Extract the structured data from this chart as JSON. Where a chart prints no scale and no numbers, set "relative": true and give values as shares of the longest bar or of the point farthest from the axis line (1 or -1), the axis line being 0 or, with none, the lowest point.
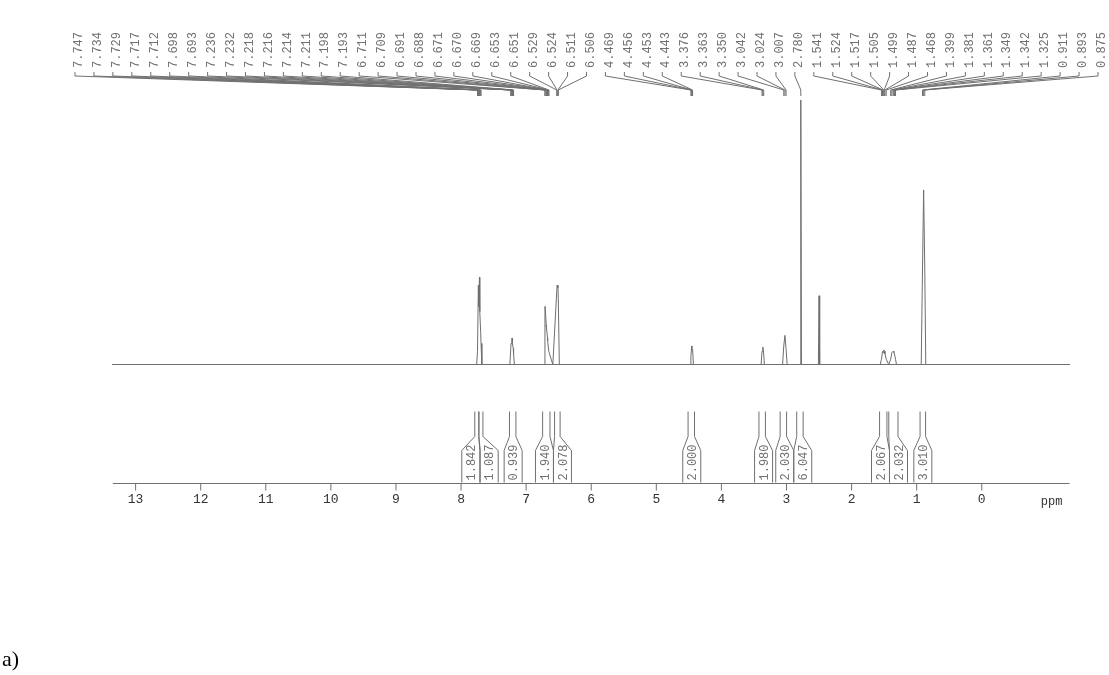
{
  "chart_data": {
    "type": "line",
    "relative": true,
    "xlabel": "ppm",
    "xlim": [
      13.35,
      -1.35
    ],
    "xticks": [
      13,
      12,
      11,
      10,
      9,
      8,
      7,
      6,
      5,
      4,
      3,
      2,
      1,
      0
    ],
    "grid": false,
    "legend": false,
    "marker": "none",
    "line_style": "solid",
    "series": [
      {
        "color": "#6e6e6e",
        "x": [
          13.35,
          7.76,
          7.747,
          7.734,
          7.729,
          7.717,
          7.712,
          7.698,
          7.693,
          7.68,
          7.25,
          7.236,
          7.232,
          7.218,
          7.214,
          7.211,
          7.198,
          7.193,
          7.18,
          6.72,
          6.711,
          6.709,
          6.691,
          6.688,
          6.671,
          6.67,
          6.669,
          6.653,
          6.651,
          6.59,
          6.529,
          6.524,
          6.511,
          6.506,
          6.49,
          4.48,
          4.469,
          4.456,
          4.453,
          4.443,
          4.43,
          3.39,
          3.376,
          3.363,
          3.35,
          3.34,
          3.06,
          3.042,
          3.024,
          3.007,
          2.99,
          2.79,
          2.78,
          2.77,
          2.51,
          2.5,
          2.49,
          1.56,
          1.541,
          1.524,
          1.517,
          1.505,
          1.499,
          1.487,
          1.468,
          1.43,
          1.399,
          1.381,
          1.361,
          1.349,
          1.342,
          1.325,
          1.31,
          0.93,
          0.911,
          0.893,
          0.875,
          0.86,
          -1.35
        ],
        "values": [
          0,
          0,
          0.05,
          0.3,
          0.22,
          0.33,
          0.2,
          0.12,
          0.08,
          0,
          0,
          0.06,
          0.08,
          0.1,
          0.1,
          0.08,
          0.06,
          0.04,
          0,
          0,
          0.18,
          0.22,
          0.15,
          0.14,
          0.1,
          0.09,
          0.09,
          0.05,
          0.05,
          0,
          0.28,
          0.3,
          0.29,
          0.25,
          0,
          0,
          0.03,
          0.07,
          0.065,
          0.06,
          0,
          0,
          0.05,
          0.066,
          0.04,
          0,
          0,
          0.07,
          0.11,
          0.06,
          0,
          0,
          1.0,
          0,
          0,
          0.26,
          0,
          0,
          0.02,
          0.05,
          0.045,
          0.055,
          0.05,
          0.04,
          0.02,
          0,
          0.02,
          0.045,
          0.05,
          0.045,
          0.04,
          0.02,
          0,
          0,
          0.35,
          0.66,
          0.35,
          0,
          0
        ]
      }
    ],
    "annotations": [
      {
        "text": "7.747",
        "x": 7.747
      },
      {
        "text": "7.734",
        "x": 7.734
      },
      {
        "text": "7.729",
        "x": 7.729
      },
      {
        "text": "7.717",
        "x": 7.717
      },
      {
        "text": "7.712",
        "x": 7.712
      },
      {
        "text": "7.698",
        "x": 7.698
      },
      {
        "text": "7.693",
        "x": 7.693
      },
      {
        "text": "7.236",
        "x": 7.236
      },
      {
        "text": "7.232",
        "x": 7.232
      },
      {
        "text": "7.218",
        "x": 7.218
      },
      {
        "text": "7.216",
        "x": 7.216
      },
      {
        "text": "7.214",
        "x": 7.214
      },
      {
        "text": "7.211",
        "x": 7.211
      },
      {
        "text": "7.198",
        "x": 7.198
      },
      {
        "text": "7.193",
        "x": 7.193
      },
      {
        "text": "6.711",
        "x": 6.711
      },
      {
        "text": "6.709",
        "x": 6.709
      },
      {
        "text": "6.691",
        "x": 6.691
      },
      {
        "text": "6.688",
        "x": 6.688
      },
      {
        "text": "6.671",
        "x": 6.671
      },
      {
        "text": "6.670",
        "x": 6.67
      },
      {
        "text": "6.669",
        "x": 6.669
      },
      {
        "text": "6.653",
        "x": 6.653
      },
      {
        "text": "6.651",
        "x": 6.651
      },
      {
        "text": "6.529",
        "x": 6.529
      },
      {
        "text": "6.524",
        "x": 6.524
      },
      {
        "text": "6.511",
        "x": 6.511
      },
      {
        "text": "6.506",
        "x": 6.506
      },
      {
        "text": "4.469",
        "x": 4.469
      },
      {
        "text": "4.456",
        "x": 4.456
      },
      {
        "text": "4.453",
        "x": 4.453
      },
      {
        "text": "4.443",
        "x": 4.443
      },
      {
        "text": "3.376",
        "x": 3.376
      },
      {
        "text": "3.363",
        "x": 3.363
      },
      {
        "text": "3.350",
        "x": 3.35
      },
      {
        "text": "3.042",
        "x": 3.042
      },
      {
        "text": "3.024",
        "x": 3.024
      },
      {
        "text": "3.007",
        "x": 3.007
      },
      {
        "text": "2.780",
        "x": 2.78
      },
      {
        "text": "1.541",
        "x": 1.541
      },
      {
        "text": "1.524",
        "x": 1.524
      },
      {
        "text": "1.517",
        "x": 1.517
      },
      {
        "text": "1.505",
        "x": 1.505
      },
      {
        "text": "1.499",
        "x": 1.499
      },
      {
        "text": "1.487",
        "x": 1.487
      },
      {
        "text": "1.468",
        "x": 1.468
      },
      {
        "text": "1.399",
        "x": 1.399
      },
      {
        "text": "1.381",
        "x": 1.381
      },
      {
        "text": "1.361",
        "x": 1.361
      },
      {
        "text": "1.349",
        "x": 1.349
      },
      {
        "text": "1.342",
        "x": 1.342
      },
      {
        "text": "1.325",
        "x": 1.325
      },
      {
        "text": "0.911",
        "x": 0.911
      },
      {
        "text": "0.893",
        "x": 0.893
      },
      {
        "text": "0.875",
        "x": 0.875
      },
      "1.842",
      "1.087",
      "0.939",
      "1.940",
      "2.078",
      "2.000",
      "1.980",
      "2.030",
      "6.047",
      "2.067",
      "2.032",
      "3.010",
      "a)"
    ]
  }
}
